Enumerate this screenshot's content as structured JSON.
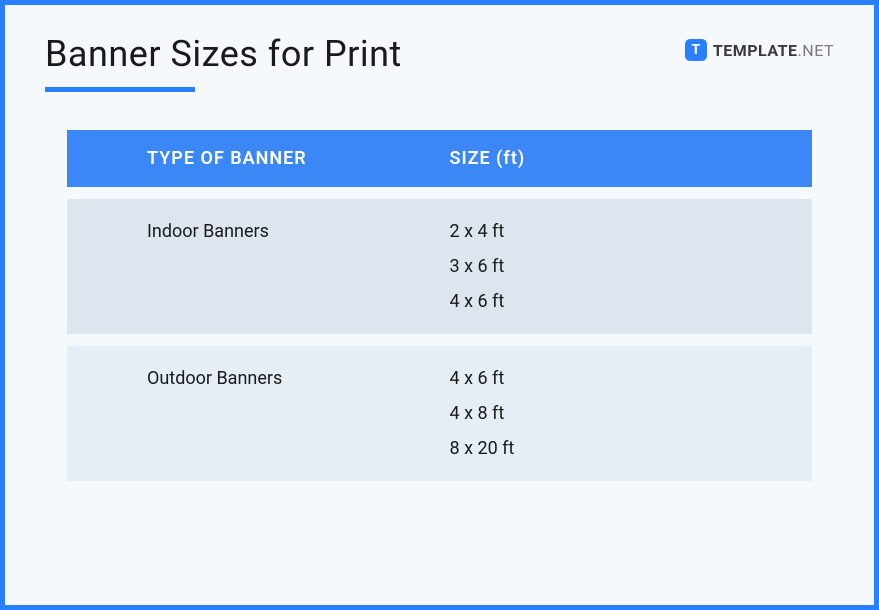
{
  "title": "Banner Sizes for Print",
  "brand": {
    "icon_letter": "T",
    "name": "TEMPLATE",
    "suffix": ".NET"
  },
  "table": {
    "header": {
      "col1": "TYPE OF BANNER",
      "col2": "SIZE (ft)"
    },
    "rows": [
      {
        "type": "Indoor Banners",
        "sizes": [
          "2 x 4 ft",
          "3 x 6 ft",
          "4 x 6 ft"
        ]
      },
      {
        "type": "Outdoor Banners",
        "sizes": [
          "4 x 6 ft",
          "4 x 8 ft",
          "8 x 20 ft"
        ]
      }
    ]
  },
  "styling": {
    "frame_border_color": "#2a7fff",
    "frame_background": "#f5f9fe",
    "title_color": "#1a1a1a",
    "title_fontsize": 36,
    "underline_color": "#2a7fff",
    "underline_width": 150,
    "brand_icon_bg": "#2a7fff",
    "brand_text_color": "#3a3a3a",
    "brand_suffix_color": "#7a7a7a",
    "table_header_bg": "#3b87f5",
    "table_header_text": "#ffffff",
    "table_header_fontsize": 18,
    "row_bg_1": "#dde5ef",
    "row_bg_2": "#e5edf5",
    "cell_text_color": "#1a1a1a",
    "cell_fontsize": 18,
    "row_gap": 12
  }
}
